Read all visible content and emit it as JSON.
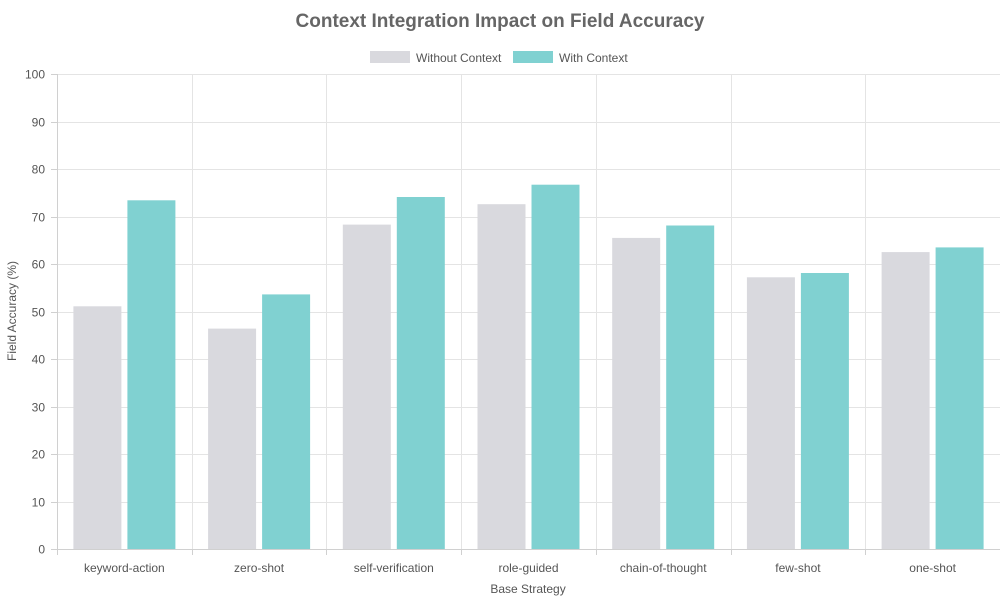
{
  "chart_data": {
    "type": "bar",
    "title": "Context Integration Impact on Field Accuracy",
    "xlabel": "Base Strategy",
    "ylabel": "Field Accuracy (%)",
    "categories": [
      "keyword-action",
      "zero-shot",
      "self-verification",
      "role-guided",
      "chain-of-thought",
      "few-shot",
      "one-shot"
    ],
    "series": [
      {
        "name": "Without Context",
        "color": "#d9d9de",
        "values": [
          51.1,
          46.4,
          68.3,
          72.6,
          65.5,
          57.2,
          62.5
        ]
      },
      {
        "name": "With Context",
        "color": "#80d1d1",
        "values": [
          73.4,
          53.6,
          74.1,
          76.7,
          68.1,
          58.1,
          63.5
        ]
      }
    ],
    "ylim": [
      0,
      100
    ],
    "yticks": [
      0,
      10,
      20,
      30,
      40,
      50,
      60,
      70,
      80,
      90,
      100
    ],
    "grid": true,
    "legend_position": "top-center"
  }
}
